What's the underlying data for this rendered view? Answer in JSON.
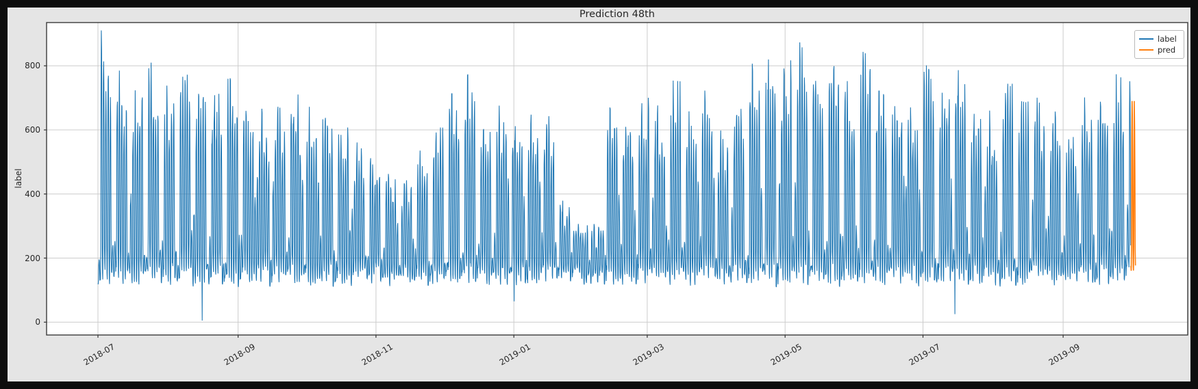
{
  "window": {
    "background": "#0d0d0d",
    "figure_bg": "#e5e5e5",
    "plot_bg": "#ffffff",
    "grid_color": "#cccccc",
    "spine_color": "#3a3a3a",
    "tick_color": "#333333",
    "text_color": "#262626"
  },
  "chart_data": {
    "type": "line",
    "title": "Prediction 48th",
    "ylabel": "label",
    "xlabel": "",
    "grid": true,
    "legend_position": "upper right",
    "legend": [
      "label",
      "pred"
    ],
    "x_start_date": "2018-07-01",
    "x_tick_labels": [
      "2018-07",
      "2018-09",
      "2018-11",
      "2019-01",
      "2019-03",
      "2019-05",
      "2019-07",
      "2019-09"
    ],
    "x_tick_day_offsets": [
      0,
      62,
      123,
      184,
      243,
      304,
      365,
      427
    ],
    "y_ticks": [
      0,
      200,
      400,
      600,
      800
    ],
    "ylim": [
      -40,
      935
    ],
    "y_max_observed": 880,
    "series": [
      {
        "name": "label",
        "color": "#1f77b4",
        "start_day": 0,
        "n_days": 457
      },
      {
        "name": "pred",
        "color": "#ff7f0e",
        "start_day": 457,
        "n_days": 2,
        "low": 150,
        "peak": 690
      }
    ],
    "weekly_peak_envelope": [
      880,
      760,
      700,
      785,
      715,
      755,
      690,
      700,
      760,
      640,
      645,
      655,
      690,
      660,
      625,
      600,
      545,
      510,
      450,
      455,
      520,
      615,
      690,
      750,
      655,
      655,
      620,
      650,
      640,
      380,
      310,
      300,
      650,
      655,
      700,
      680,
      730,
      655,
      700,
      580,
      700,
      780,
      800,
      810,
      845,
      775,
      810,
      750,
      830,
      700,
      690,
      650,
      775,
      730,
      780,
      665,
      640,
      785,
      700,
      680,
      650,
      600,
      680,
      700,
      750,
      730
    ],
    "night_low_range": [
      105,
      170
    ],
    "weekend_peak_range": [
      170,
      300
    ],
    "daily_shape": [
      0.05,
      0.02,
      0.18,
      0.78,
      1.0,
      0.92,
      0.58,
      0.16
    ],
    "anomaly_dips": [
      {
        "day_offset": 46,
        "approx_date": "2018-08-16",
        "value": 5
      },
      {
        "day_offset": 184,
        "approx_date": "2019-01-01",
        "value": 65
      },
      {
        "day_offset": 379,
        "approx_date": "2019-07-15",
        "value": 25
      }
    ],
    "samples_per_day": 8,
    "seed": 1337
  }
}
